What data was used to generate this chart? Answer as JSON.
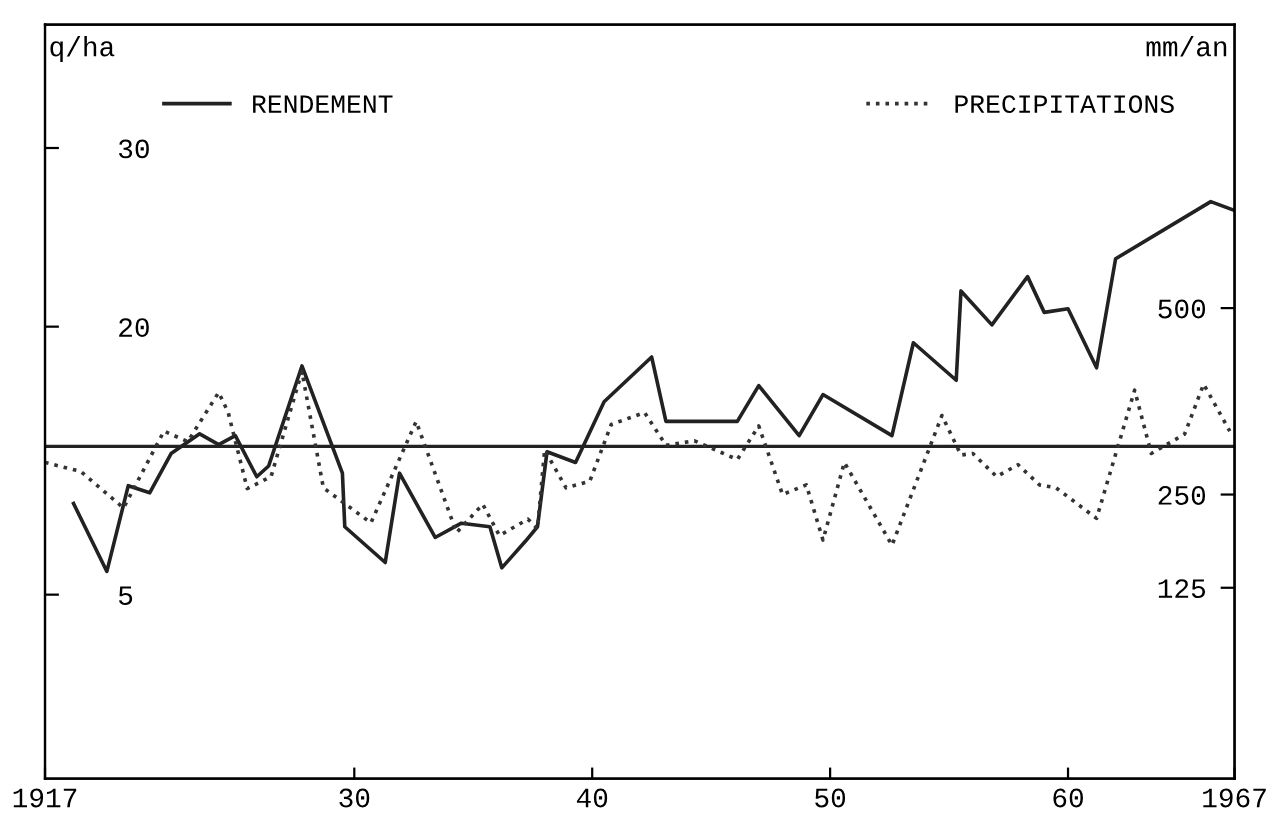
{
  "chart_data": {
    "type": "line",
    "xlabel": null,
    "ylabel": "q/ha",
    "y2label": "mm/an",
    "xlim": [
      1917,
      1967
    ],
    "xticks": [
      1917,
      {
        "value": 1930,
        "label": "30"
      },
      {
        "value": 1940,
        "label": "40"
      },
      {
        "value": 1950,
        "label": "50"
      },
      {
        "value": 1960,
        "label": "60"
      },
      1967
    ],
    "ylim": [
      -5.3,
      36.9
    ],
    "yticks": [
      5,
      20,
      30
    ],
    "y2lim": [
      -131,
      880
    ],
    "y2ticks": [
      125,
      250,
      500
    ],
    "ref_lines": [
      {
        "axis": "y",
        "value": 13.3,
        "label": null,
        "color": "#222222"
      }
    ],
    "legend": "top",
    "grid": false,
    "series": [
      {
        "name": "RENDEMENT",
        "color": "#222222",
        "line_style": "solid",
        "axis": "y",
        "x": [
          1918.2,
          1919.6,
          1920.5,
          1921.4,
          1922.3,
          1923.5,
          1924.3,
          1925.0,
          1925.9,
          1926.4,
          1927.8,
          1929.5,
          1929.6,
          1931.3,
          1931.9,
          1933.4,
          1934.5,
          1935.7,
          1936.2,
          1937.2,
          1937.7,
          1938.1,
          1939.3,
          1940.5,
          1942.5,
          1943.1,
          1946.1,
          1947.0,
          1948.7,
          1949.7,
          1952.6,
          1953.5,
          1955.3,
          1955.5,
          1956.8,
          1958.3,
          1959.0,
          1960.0,
          1961.2,
          1962.0,
          1966.0,
          1967.0
        ],
        "values": [
          10.1,
          6.3,
          11.1,
          10.7,
          12.9,
          14.0,
          13.4,
          13.9,
          11.6,
          12.2,
          17.8,
          11.8,
          8.8,
          6.8,
          11.8,
          8.2,
          9.0,
          8.8,
          6.5,
          8.0,
          8.8,
          13.0,
          12.4,
          15.8,
          18.3,
          14.7,
          14.7,
          16.7,
          13.9,
          16.2,
          13.9,
          19.1,
          17.0,
          22.0,
          20.1,
          22.8,
          20.8,
          21.0,
          17.7,
          23.8,
          27.0,
          26.5
        ]
      },
      {
        "name": "PRECIPITATIONS",
        "color": "#333333",
        "line_style": "dotted",
        "axis": "y2",
        "x": [
          1917.0,
          1918.5,
          1920.3,
          1922.0,
          1923.0,
          1924.3,
          1924.7,
          1925.5,
          1926.5,
          1927.8,
          1928.7,
          1930.7,
          1932.6,
          1934.3,
          1935.4,
          1936.1,
          1937.3,
          1937.7,
          1938.0,
          1938.9,
          1939.9,
          1940.8,
          1942.2,
          1943.1,
          1944.3,
          1946.1,
          1947.0,
          1948.0,
          1949.0,
          1949.7,
          1950.6,
          1952.6,
          1954.7,
          1955.5,
          1956.0,
          1957.0,
          1957.9,
          1958.8,
          1959.5,
          1961.2,
          1962.8,
          1963.5,
          1964.9,
          1965.7,
          1966.8
        ],
        "values": [
          293,
          281,
          232,
          335,
          321,
          387,
          360,
          258,
          274,
          415,
          259,
          212,
          348,
          199,
          237,
          195,
          217,
          204,
          310,
          259,
          268,
          344,
          360,
          316,
          322,
          297,
          342,
          250,
          263,
          189,
          293,
          182,
          356,
          303,
          305,
          274,
          290,
          263,
          259,
          218,
          390,
          305,
          331,
          398,
          335
        ]
      }
    ]
  }
}
